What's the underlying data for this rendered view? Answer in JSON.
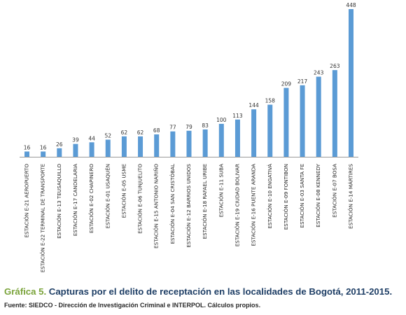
{
  "chart_data": {
    "type": "bar",
    "categories": [
      "ESTACIÓN E-21 AEROPUERTO",
      "ESTACIÓN E-22 TERMINAL DE TRANSPORTE",
      "ESTACIÓN E-13 TEUSAQUILLO",
      "ESTACIÓN E-17 CANDELARIA",
      "ESTACIÓN E-02 CHAPINERO",
      "ESTACIÓN E-01 USAQUÉN",
      "ESTACIÓN E-05 USME",
      "ESTACIÓN E-06 TUNJUELITO",
      "ESTACIÓN E-15 ANTONIO NARIÑO",
      "ESTACIÓN E-04 SAN CRISTÓBAL",
      "ESTACIÓN E-12 BARRIOS UNIDOS",
      "ESTACIÓN E-18 RAFAEL URIBE",
      "ESTACIÓN E-11 SUBA",
      "ESTACIÓN E-19 CIUDAD BOLIVAR",
      "ESTACIÓN E-16 PUENTE ARANDA",
      "ESTACIÓN E-10 ENGATIVÁ",
      "ESTACIÓN E-09 FONTIBON",
      "ESTACIÓN E-03 SANTA FE",
      "ESTACIÓN E-08 KENNEDY",
      "ESTACIÓN E-07 BOSA",
      "ESTACIÓN E-14 MÁRTIRES"
    ],
    "values": [
      16,
      16,
      26,
      39,
      44,
      52,
      62,
      62,
      68,
      77,
      79,
      83,
      100,
      113,
      144,
      158,
      209,
      217,
      243,
      263,
      448
    ],
    "ylim": [
      0,
      448
    ],
    "grid": false,
    "legend": "none",
    "bar_color": "#5b9bd5"
  },
  "caption": {
    "label": "Gráfica 5.",
    "text": "Capturas por el delito de receptación en las localidades de Bogotá, 2011-2015."
  },
  "source": "Fuente: SIEDCO - Dirección de Investigación Criminal e INTERPOL. Cálculos propios."
}
